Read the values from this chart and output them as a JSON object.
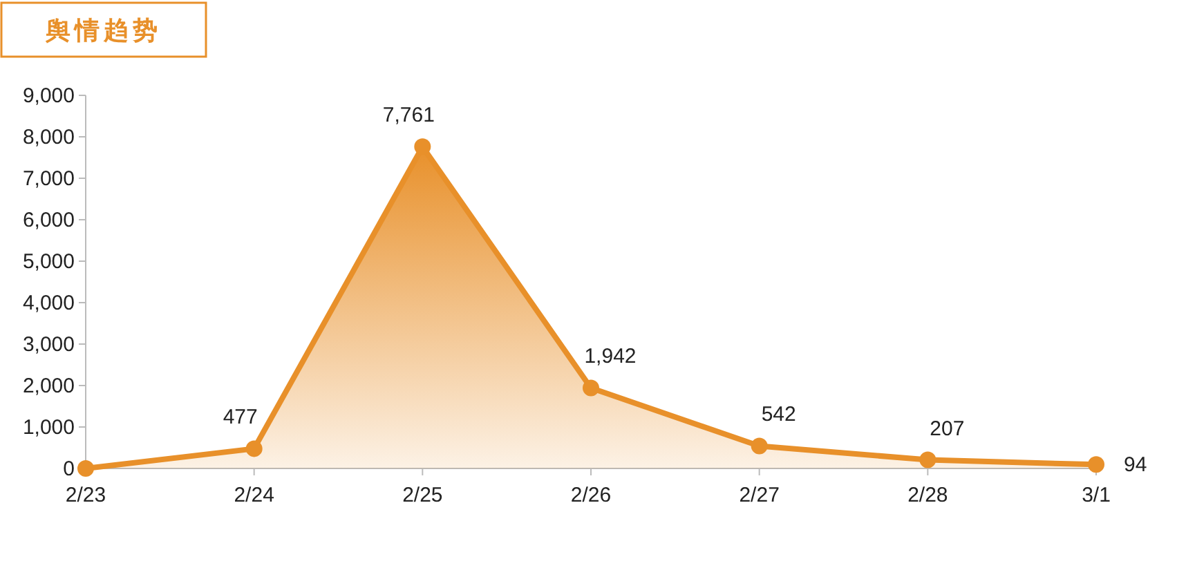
{
  "chart_data": {
    "type": "area",
    "title": "舆情趋势",
    "categories": [
      "2/23",
      "2/24",
      "2/25",
      "2/26",
      "2/27",
      "2/28",
      "3/1"
    ],
    "series": [
      {
        "color": "#e8902a",
        "values": [
          0,
          477,
          7761,
          1942,
          542,
          207,
          94
        ],
        "value_labels": [
          null,
          "477",
          "7,761",
          "1,942",
          "542",
          "207",
          "94"
        ]
      }
    ],
    "ylim": [
      0,
      9000
    ],
    "yticks": [
      {
        "value": 0,
        "label": "0"
      },
      {
        "value": 1000,
        "label": "1,000"
      },
      {
        "value": 2000,
        "label": "2,000"
      },
      {
        "value": 3000,
        "label": "3,000"
      },
      {
        "value": 4000,
        "label": "4,000"
      },
      {
        "value": 5000,
        "label": "5,000"
      },
      {
        "value": 6000,
        "label": "6,000"
      },
      {
        "value": 7000,
        "label": "7,000"
      },
      {
        "value": 8000,
        "label": "8,000"
      },
      {
        "value": 9000,
        "label": "9,000"
      }
    ],
    "marker": "circle"
  }
}
